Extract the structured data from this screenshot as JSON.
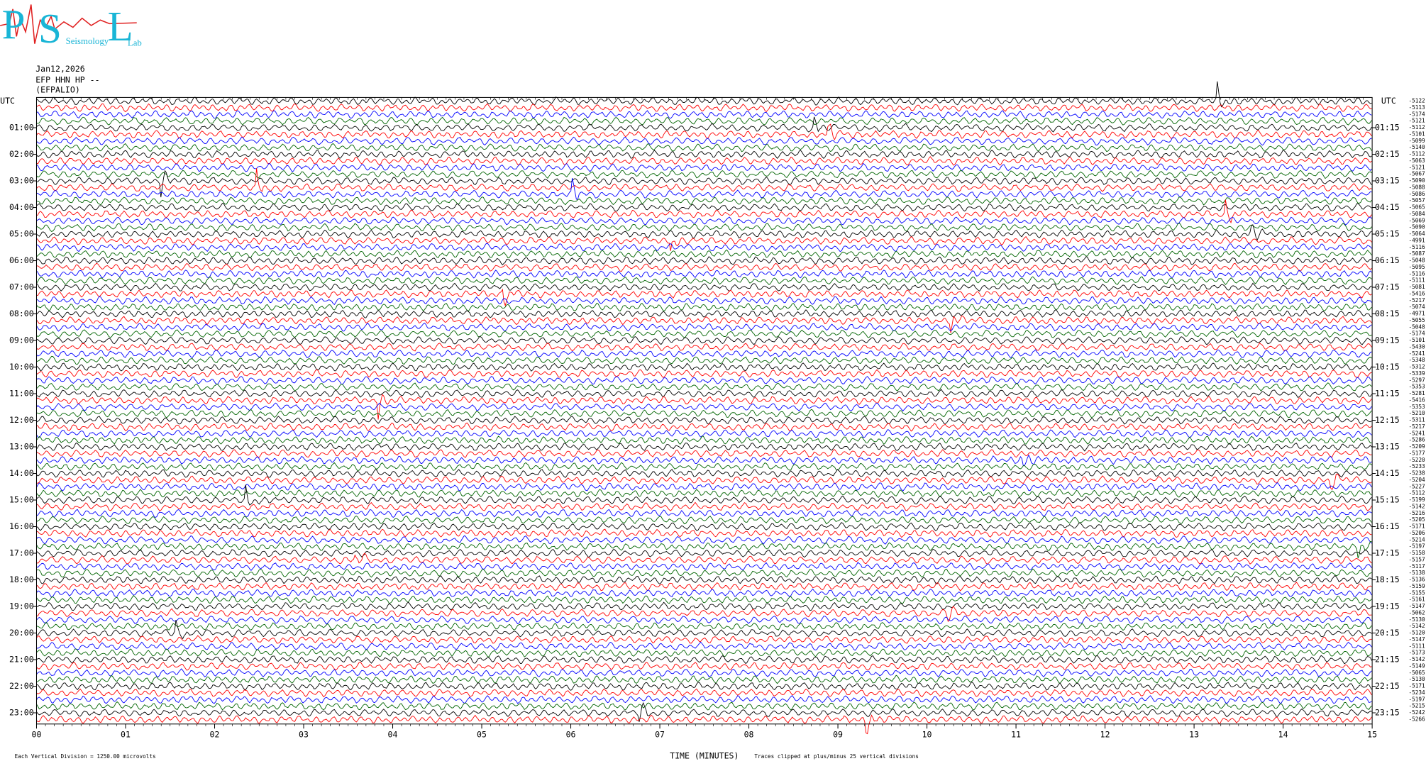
{
  "logo": {
    "letters": [
      "P",
      "S",
      "L"
    ],
    "words": [
      "Seismology",
      "Lab"
    ]
  },
  "header": {
    "date": "Jan12,2026",
    "station": "EFP HHN HP --",
    "location": "(EFPALIO)"
  },
  "left_axis": {
    "label": "UTC",
    "hours": [
      "01:00",
      "02:00",
      "03:00",
      "04:00",
      "05:00",
      "06:00",
      "07:00",
      "08:00",
      "09:00",
      "10:00",
      "11:00",
      "12:00",
      "13:00",
      "14:00",
      "15:00",
      "16:00",
      "17:00",
      "18:00",
      "19:00",
      "20:00",
      "21:00",
      "22:00",
      "23:00"
    ]
  },
  "right_axis": {
    "label": "UTC",
    "hours": [
      "01:15",
      "02:15",
      "03:15",
      "04:15",
      "05:15",
      "06:15",
      "07:15",
      "08:15",
      "09:15",
      "10:15",
      "11:15",
      "12:15",
      "13:15",
      "14:15",
      "15:15",
      "16:15",
      "17:15",
      "18:15",
      "19:15",
      "20:15",
      "21:15",
      "22:15",
      "23:15"
    ]
  },
  "trace_offsets": [
    "-5122",
    "-5113",
    "-5174",
    "-5121",
    "-5112",
    "-5101",
    "-5099",
    "-5140",
    "-5112",
    "-5063",
    "-5121",
    "-5067",
    "-5090",
    "-5088",
    "-5086",
    "-5057",
    "-5065",
    "-5084",
    "-5069",
    "-5090",
    "-5064",
    "-4991",
    "-5116",
    "-5087",
    "-5048",
    "-5095",
    "-5116",
    "-5111",
    "-5081",
    "-5416",
    "-5217",
    "-5074",
    "-4971",
    "-5055",
    "-5048",
    "-5174",
    "-5101",
    "-5430",
    "-5241",
    "-5348",
    "-5312",
    "-5339",
    "-5297",
    "-5353",
    "-5281",
    "-5416",
    "-5353",
    "-5210",
    "-5311",
    "-5217",
    "-5241",
    "-5286",
    "-5209",
    "-5177",
    "-5220",
    "-5233",
    "-5238",
    "-5204",
    "-5227",
    "-5112",
    "-5199",
    "-5142",
    "-5216",
    "-5205",
    "-5171",
    "-5206",
    "-5214",
    "-5197",
    "-5158",
    "-5157",
    "-5117",
    "-5138",
    "-5136",
    "-5159",
    "-5155",
    "-5161",
    "-5147",
    "-5062",
    "-5130",
    "-5142",
    "-5120",
    "-5147",
    "-5111",
    "-5173",
    "-5142",
    "-5149",
    "-5065",
    "-5130",
    "-5171",
    "-5234",
    "-5197",
    "-5215",
    "-5242",
    "-5266"
  ],
  "x_axis": {
    "label": "TIME (MINUTES)",
    "ticks": [
      "00",
      "01",
      "02",
      "03",
      "04",
      "05",
      "06",
      "07",
      "08",
      "09",
      "10",
      "11",
      "12",
      "13",
      "14",
      "15"
    ]
  },
  "footer": {
    "scale": "Each Vertical Division = 1250.00 microvolts",
    "clip": "Traces clipped at plus/minus 25 vertical divisions"
  }
}
